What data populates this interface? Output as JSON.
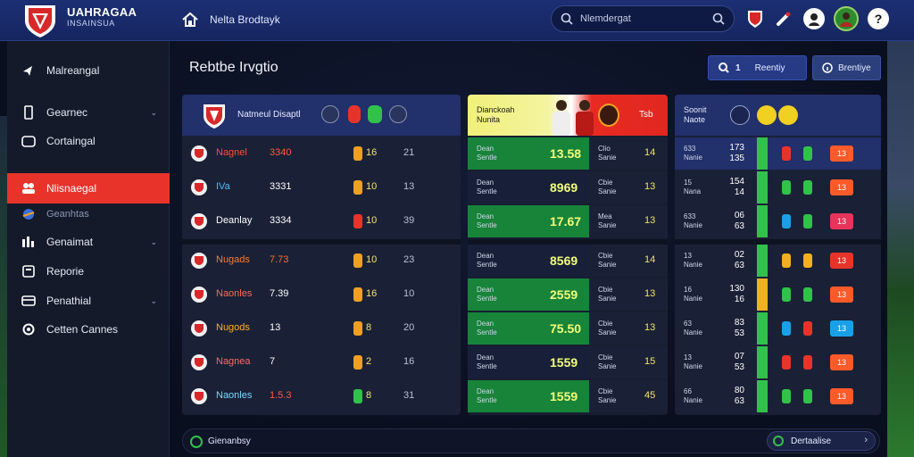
{
  "header": {
    "brand_line1": "UAHRAGAA",
    "brand_line2": "INSAINSUA",
    "breadcrumb": "Nelta Brodtayk",
    "search_placeholder": "Nlemdergat"
  },
  "sidebar": {
    "items": [
      {
        "label": "Malreangal",
        "state": "normal"
      },
      {
        "label": "Gearnec",
        "state": "expand"
      },
      {
        "label": "Cortaingal",
        "state": "normal"
      },
      {
        "label": "Nlisnaegal",
        "state": "active"
      },
      {
        "label": "Geanhtas",
        "state": "dim"
      },
      {
        "label": "Genaimat",
        "state": "expand"
      },
      {
        "label": "Reporie",
        "state": "normal"
      },
      {
        "label": "Penathial",
        "state": "expand"
      },
      {
        "label": "Cetten Cannes",
        "state": "normal"
      }
    ]
  },
  "main": {
    "title": "Rebtbe Irvgtio",
    "btn_primary": "Reentiy",
    "btn_primary_num": "1",
    "btn_secondary": "Brentiye"
  },
  "left_panel": {
    "title": "Natmeul Disaptl",
    "rows": [
      {
        "team": "Nagnel",
        "score": "3340",
        "count": "16",
        "n": "21",
        "team_color": "#ff4a3a",
        "score_color": "#ff5a3a",
        "pill_color": "#f0a020"
      },
      {
        "team": "IVa",
        "score": "3331",
        "count": "10",
        "n": "13",
        "team_color": "#59b8ff",
        "score_color": "#ffffff",
        "pill_color": "#f0a020"
      },
      {
        "team": "Deanlay",
        "score": "3334",
        "count": "10",
        "n": "39",
        "team_color": "#ffffff",
        "score_color": "#ffffff",
        "pill_color": "#e8332a"
      },
      {
        "team": "Nugads",
        "score": "7.73",
        "count": "10",
        "n": "23",
        "team_color": "#ff7a2a",
        "score_color": "#ff6a2a",
        "pill_color": "#f0a020"
      },
      {
        "team": "Naonles",
        "score": "7.39",
        "count": "16",
        "n": "10",
        "team_color": "#ff6a5a",
        "score_color": "#ffffff",
        "pill_color": "#f0a020"
      },
      {
        "team": "Nugods",
        "score": "13",
        "count": "8",
        "n": "20",
        "team_color": "#ffb020",
        "score_color": "#ffffff",
        "pill_color": "#f0a020"
      },
      {
        "team": "Nagnea",
        "score": "7",
        "count": "2",
        "n": "16",
        "team_color": "#ff6a6a",
        "score_color": "#ffffff",
        "pill_color": "#f0a020"
      },
      {
        "team": "Naonles",
        "score": "1.5.3",
        "count": "8",
        "n": "31",
        "team_color": "#7ad8ff",
        "score_color": "#ff5a3a",
        "pill_color": "#31c24a"
      }
    ]
  },
  "mid_panel": {
    "title_line1": "Dianckoah",
    "title_line2": "Nunita",
    "tag": "Tsb",
    "rows": [
      {
        "a": "Dean",
        "b": "Sentle",
        "val": "13.58",
        "c": "Clio",
        "d": "Sanie",
        "n": "14",
        "highlight": true
      },
      {
        "a": "Dean",
        "b": "Sentle",
        "val": "8969",
        "c": "Cbie",
        "d": "Sanie",
        "n": "13",
        "highlight": false
      },
      {
        "a": "Dean",
        "b": "Sentle",
        "val": "17.67",
        "c": "Mea",
        "d": "Sanie",
        "n": "13",
        "highlight": true
      },
      {
        "a": "Dean",
        "b": "Sentle",
        "val": "8569",
        "c": "Cbie",
        "d": "Sanie",
        "n": "14",
        "highlight": false
      },
      {
        "a": "Dean",
        "b": "Sentle",
        "val": "2559",
        "c": "Cbie",
        "d": "Sanie",
        "n": "13",
        "highlight": true
      },
      {
        "a": "Dean",
        "b": "Sentle",
        "val": "75.50",
        "c": "Cbie",
        "d": "Sanie",
        "n": "13",
        "highlight": true
      },
      {
        "a": "Dean",
        "b": "Sentle",
        "val": "1559",
        "c": "Cbie",
        "d": "Sanie",
        "n": "15",
        "highlight": false
      },
      {
        "a": "Dean",
        "b": "Sentle",
        "val": "1559",
        "c": "Cbie",
        "d": "Sanie",
        "n": "45",
        "highlight": true
      }
    ]
  },
  "right_panel": {
    "title_line1": "Soonit",
    "title_line2": "Naote",
    "rows": [
      {
        "a": "633",
        "b": "Nanie",
        "v1": "173",
        "v2": "135",
        "bar": "#31c24a",
        "p1": "#e8332a",
        "p2": "#31c24a",
        "badge": "#ff5a2a",
        "badge_text": "13"
      },
      {
        "a": "15",
        "b": "Nana",
        "v1": "154",
        "v2": "14",
        "bar": "#31c24a",
        "p1": "#31c24a",
        "p2": "#31c24a",
        "badge": "#ff5a2a",
        "badge_text": "13"
      },
      {
        "a": "633",
        "b": "Nanie",
        "v1": "06",
        "v2": "63",
        "bar": "#31c24a",
        "p1": "#1aa0e8",
        "p2": "#31c24a",
        "badge": "#e8335a",
        "badge_text": "13"
      },
      {
        "a": "13",
        "b": "Nanie",
        "v1": "02",
        "v2": "63",
        "bar": "#31c24a",
        "p1": "#f0b020",
        "p2": "#f0b020",
        "badge": "#e8332a",
        "badge_text": "13"
      },
      {
        "a": "16",
        "b": "Nanie",
        "v1": "130",
        "v2": "16",
        "bar": "#f0b020",
        "p1": "#31c24a",
        "p2": "#31c24a",
        "badge": "#ff5a2a",
        "badge_text": "13"
      },
      {
        "a": "63",
        "b": "Nanie",
        "v1": "83",
        "v2": "53",
        "bar": "#31c24a",
        "p1": "#1aa0e8",
        "p2": "#e8332a",
        "badge": "#1aa0e8",
        "badge_text": "13"
      },
      {
        "a": "13",
        "b": "Nanie",
        "v1": "07",
        "v2": "53",
        "bar": "#31c24a",
        "p1": "#e8332a",
        "p2": "#e8332a",
        "badge": "#ff5a2a",
        "badge_text": "13"
      },
      {
        "a": "66",
        "b": "Nanie",
        "v1": "80",
        "v2": "63",
        "bar": "#31c24a",
        "p1": "#31c24a",
        "p2": "#31c24a",
        "badge": "#ff5a2a",
        "badge_text": "13"
      }
    ]
  },
  "footer": {
    "left_label": "Gienanbsy",
    "right_label": "Dertaalise"
  }
}
